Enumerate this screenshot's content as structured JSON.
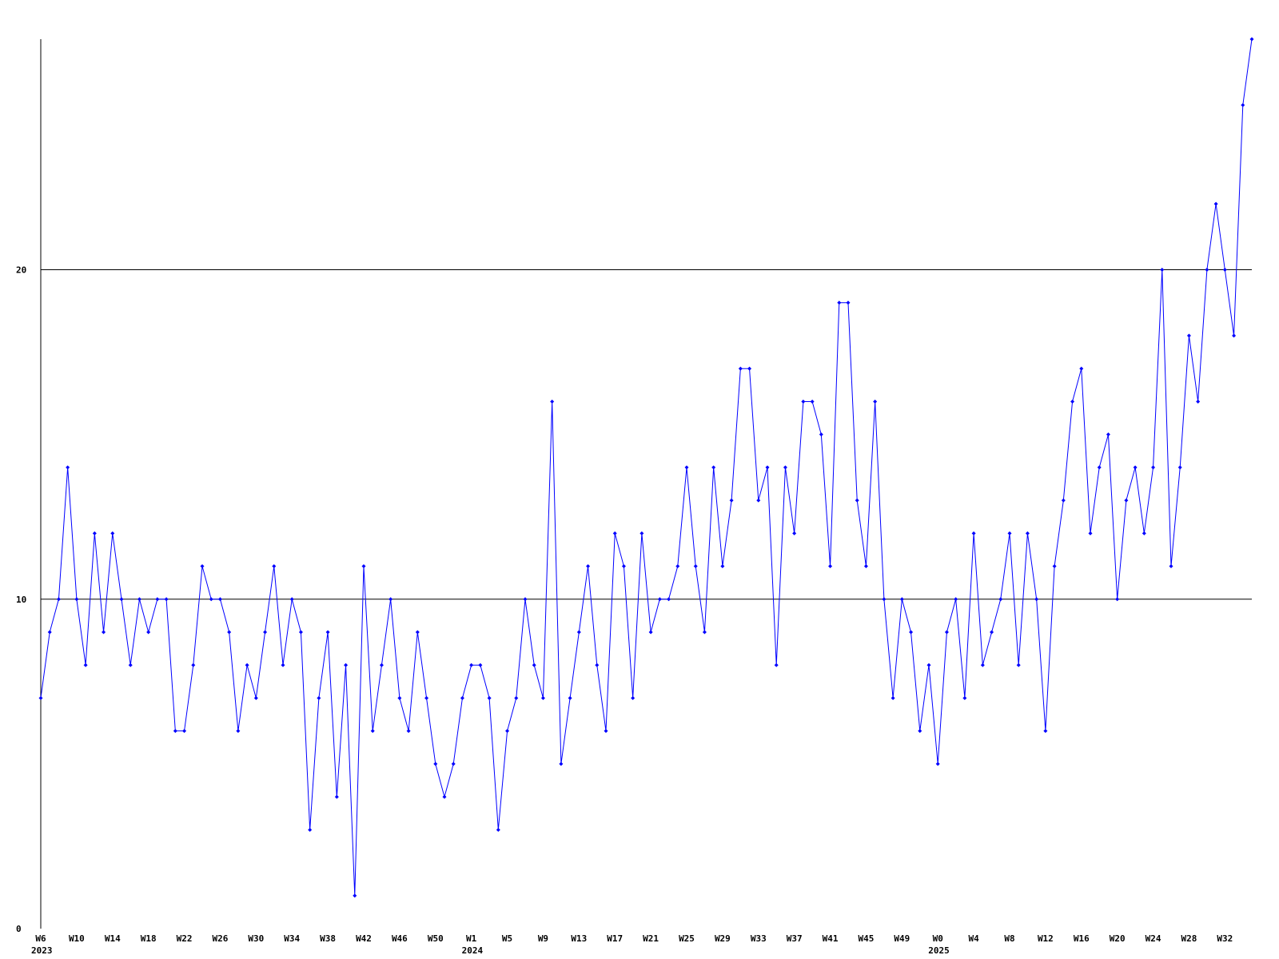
{
  "chart_data": {
    "type": "line",
    "categories": [
      "W6",
      null,
      null,
      null,
      "W10",
      null,
      null,
      null,
      "W14",
      null,
      null,
      null,
      "W18",
      null,
      null,
      null,
      "W22",
      null,
      null,
      null,
      "W26",
      null,
      null,
      null,
      "W30",
      null,
      null,
      null,
      "W34",
      null,
      null,
      null,
      "W38",
      null,
      null,
      null,
      "W42",
      null,
      null,
      null,
      "W46",
      null,
      null,
      null,
      "W50",
      null,
      null,
      null,
      "W1",
      null,
      null,
      null,
      "W5",
      null,
      null,
      null,
      "W9",
      null,
      null,
      null,
      "W13",
      null,
      null,
      null,
      "W17",
      null,
      null,
      null,
      "W21",
      null,
      null,
      null,
      "W25",
      null,
      null,
      null,
      "W29",
      null,
      null,
      null,
      "W33",
      null,
      null,
      null,
      "W37",
      null,
      null,
      null,
      "W41",
      null,
      null,
      null,
      "W45",
      null,
      null,
      null,
      "W49",
      null,
      null,
      null,
      "W0",
      null,
      null,
      null,
      "W4",
      null,
      null,
      null,
      "W8",
      null,
      null,
      null,
      "W12",
      null,
      null,
      null,
      "W16",
      null,
      null,
      null,
      "W20",
      null,
      null,
      null,
      "W24",
      null,
      null,
      null,
      "W28",
      null,
      null,
      null,
      "W32",
      null,
      null,
      null
    ],
    "year_labels": [
      {
        "category_index": 0,
        "label": "2023"
      },
      {
        "category_index": 48,
        "label": "2024"
      },
      {
        "category_index": 100,
        "label": "2025"
      }
    ],
    "values": [
      7,
      9,
      10,
      14,
      10,
      8,
      12,
      9,
      12,
      10,
      8,
      10,
      9,
      10,
      10,
      6,
      6,
      8,
      11,
      10,
      10,
      9,
      6,
      8,
      7,
      9,
      11,
      8,
      10,
      9,
      3,
      7,
      9,
      4,
      8,
      1,
      11,
      6,
      8,
      10,
      7,
      6,
      9,
      7,
      5,
      4,
      5,
      7,
      8,
      8,
      7,
      3,
      6,
      7,
      10,
      8,
      7,
      16,
      5,
      7,
      9,
      11,
      8,
      6,
      12,
      11,
      7,
      12,
      9,
      10,
      10,
      11,
      14,
      11,
      9,
      14,
      11,
      13,
      17,
      17,
      13,
      14,
      8,
      14,
      12,
      16,
      16,
      15,
      11,
      19,
      19,
      13,
      11,
      16,
      10,
      7,
      10,
      9,
      6,
      8,
      5,
      9,
      10,
      7,
      12,
      8,
      9,
      10,
      12,
      8,
      12,
      10,
      6,
      11,
      13,
      16,
      17,
      12,
      14,
      15,
      10,
      13,
      14,
      12,
      14,
      20,
      11,
      14,
      18,
      16,
      20,
      22,
      20,
      18,
      25,
      27
    ],
    "color": "#0000ff",
    "ylim": [
      0,
      27
    ],
    "yticks": [
      0,
      10,
      20
    ],
    "grid": true
  }
}
